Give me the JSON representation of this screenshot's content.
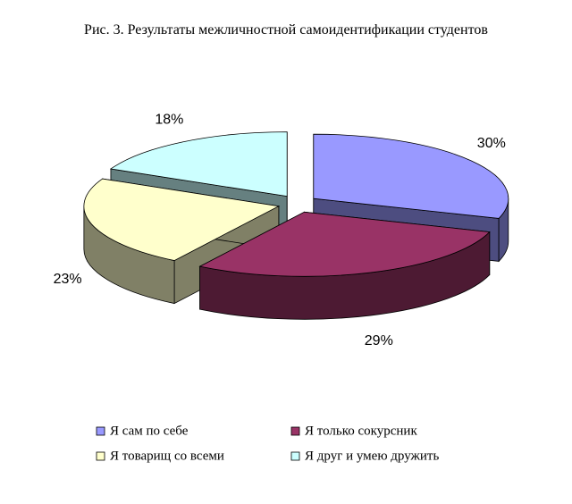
{
  "chart_data": {
    "type": "pie",
    "title": "Рис. 3.  Результаты межличностной самоидентификации студентов",
    "categories": [
      "Я сам по себе",
      "Я только сокурсник",
      "Я товарищ со всеми",
      "Я друг и умею дружить"
    ],
    "values": [
      30,
      29,
      23,
      18
    ],
    "value_labels": [
      "30%",
      "29%",
      "23%",
      "18%"
    ],
    "colors": [
      "#9999ff",
      "#993366",
      "#ffffcc",
      "#ccffff"
    ]
  }
}
